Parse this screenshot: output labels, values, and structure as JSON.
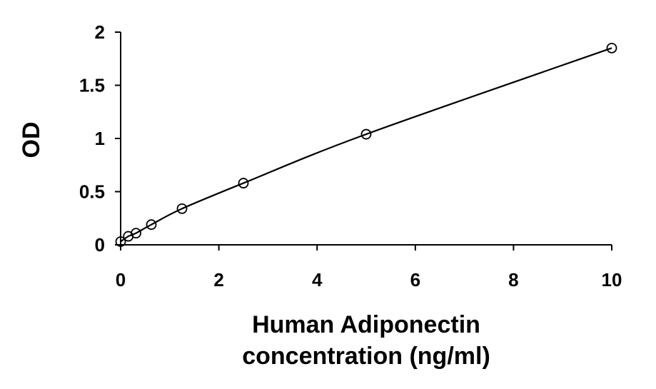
{
  "chart_data": {
    "type": "scatter",
    "title": "",
    "xlabel_lines": [
      "Human Adiponectin",
      "concentration (ng/ml)"
    ],
    "ylabel": "OD",
    "xlim": [
      0,
      10
    ],
    "ylim": [
      0,
      2
    ],
    "x_ticks": [
      0,
      2,
      4,
      6,
      8,
      10
    ],
    "y_ticks": [
      0,
      0.5,
      1,
      1.5,
      2
    ],
    "x_tick_labels": [
      "0",
      "2",
      "4",
      "6",
      "8",
      "10"
    ],
    "y_tick_labels": [
      "0",
      "0.5",
      "1",
      "1.5",
      "2"
    ],
    "grid": false,
    "legend": "none",
    "trendline": "smooth fitted curve through points",
    "series": [
      {
        "marker": "open-circle",
        "x": [
          0,
          0.156,
          0.313,
          0.625,
          1.25,
          2.5,
          5,
          10
        ],
        "y": [
          0.03,
          0.08,
          0.11,
          0.19,
          0.34,
          0.58,
          1.04,
          1.85
        ]
      }
    ]
  }
}
